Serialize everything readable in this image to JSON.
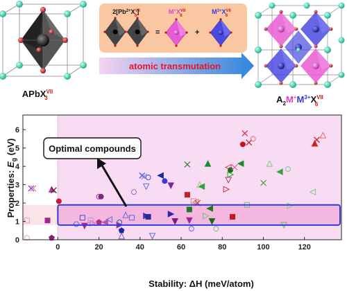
{
  "top": {
    "left_label": {
      "main": "APbX",
      "sup": "VII",
      "sub": "3"
    },
    "right_label": {
      "a": "A",
      "a_sub": "2",
      "m1": "M",
      "m1_sup": "+",
      "m3": "M",
      "m3_sup": "3+",
      "x": "X",
      "x_sup": "VII",
      "x_sub": "6"
    },
    "equation": {
      "pb_term": {
        "prefix": "2[Pb",
        "prefix_sup": "2+",
        "x": "X",
        "x_sup": "VII",
        "x_sub": "6",
        "suffix": "]"
      },
      "m1_term": {
        "m": "M",
        "m_sup": "+",
        "x": "X",
        "x_sup": "VII",
        "x_sub": "6"
      },
      "m3_term": {
        "m": "M",
        "m_sup": "3+",
        "x": "X",
        "x_sup": "VII",
        "x_sub": "6"
      },
      "equals": "=",
      "plus": "+"
    },
    "arrow_label": "atomic transmutation",
    "colors": {
      "panel": "#f9c8a2",
      "arrow_start": "#f6d3f0",
      "arrow_end": "#2f86de",
      "arrow_text": "#e8152a",
      "pb_octa": "#444444",
      "m1_octa": "#e85ad4",
      "m3_octa": "#4a4ae0",
      "a_atom": "#20c4a0",
      "x_atom": "#b81818"
    }
  },
  "chart_data": {
    "type": "scatter",
    "xlabel": "Stability: ΔH (meV/atom)",
    "ylabel_prefix": "Properties: ",
    "ylabel_var": "E",
    "ylabel_sub": "g",
    "ylabel_unit": " (eV)",
    "xlim": [
      -17,
      138
    ],
    "ylim": [
      0,
      6.8
    ],
    "xticks": [
      "0",
      "20",
      "40",
      "60",
      "80",
      "100",
      "120"
    ],
    "xtick_values": [
      0,
      20,
      40,
      60,
      80,
      100,
      120
    ],
    "yticks": [
      "0",
      "1",
      "2",
      "3",
      "4",
      "5",
      "6"
    ],
    "ytick_values": [
      0,
      1,
      2,
      3,
      4,
      5,
      6
    ],
    "annotation": "Optimal compounds",
    "regions": {
      "unstable_bg": "#ffffff",
      "stable_bg": "#f8dcf4",
      "optimal_band": [
        0.8,
        1.9
      ],
      "band_fill": "#f3b7e0",
      "band_border": "#2c3ed6"
    },
    "points": [
      {
        "x": -13,
        "y": 2.8,
        "m": "x",
        "c": "#7a52c8"
      },
      {
        "x": -12,
        "y": 2.8,
        "m": "x",
        "c": "#e27fd0"
      },
      {
        "x": -3,
        "y": 2.75,
        "m": "tri-up",
        "c": "#a8409c",
        "f": 1
      },
      {
        "x": -2,
        "y": 2.7,
        "m": "x",
        "c": "#6a1030"
      },
      {
        "x": 0.5,
        "y": 2.1,
        "m": "circle",
        "c": "#cc1c2a",
        "f": 1
      },
      {
        "x": -15,
        "y": 1.05,
        "m": "square",
        "c": "#e89ad6"
      },
      {
        "x": -5,
        "y": 1.05,
        "m": "square",
        "c": "#9c2a8a",
        "f": 1
      },
      {
        "x": -15,
        "y": 0.1,
        "m": "circle",
        "c": "#e89ad6"
      },
      {
        "x": -3,
        "y": 0.1,
        "m": "pentagon",
        "c": "#8a1c7a",
        "f": 1
      },
      {
        "x": 9,
        "y": 0.85,
        "m": "circle",
        "c": "#6a6ad0"
      },
      {
        "x": 12,
        "y": 1.2,
        "m": "square",
        "c": "#4a4ad8"
      },
      {
        "x": 13,
        "y": 0.75,
        "m": "tri-down",
        "c": "#a03090",
        "f": 1
      },
      {
        "x": 16,
        "y": 1.05,
        "m": "square",
        "c": "#d08ac8"
      },
      {
        "x": 17,
        "y": 0.9,
        "m": "tri-right",
        "c": "#c070c0"
      },
      {
        "x": 20,
        "y": 0.95,
        "m": "pentagon",
        "c": "#b03080",
        "f": 1
      },
      {
        "x": 20,
        "y": 2.35,
        "m": "circle",
        "c": "#a03a8a"
      },
      {
        "x": 21,
        "y": 2.35,
        "m": "circle",
        "c": "#7a2a7a",
        "f": 1
      },
      {
        "x": 23,
        "y": 0.95,
        "m": "tri-left",
        "c": "#c050b0",
        "f": 1
      },
      {
        "x": 25,
        "y": 1.1,
        "m": "tri-left",
        "c": "#6a6ad8"
      },
      {
        "x": 30,
        "y": 0.8,
        "m": "tri-right",
        "c": "#8a2aa0",
        "f": 1
      },
      {
        "x": 30,
        "y": 0.95,
        "m": "circle",
        "c": "#2060c0"
      },
      {
        "x": 31,
        "y": 0.5,
        "m": "pentagon",
        "c": "#1a2a9a",
        "f": 1
      },
      {
        "x": 31,
        "y": 0.2,
        "m": "tri-up",
        "c": "#7a5ad0"
      },
      {
        "x": 33,
        "y": 1.35,
        "m": "tri-up",
        "c": "#6a6ad8"
      },
      {
        "x": 36,
        "y": 1.2,
        "m": "square",
        "c": "#5a6ad8"
      },
      {
        "x": 37,
        "y": 2.6,
        "m": "circle",
        "c": "#a060c0"
      },
      {
        "x": 41,
        "y": 3.5,
        "m": "x",
        "c": "#5a5ad8"
      },
      {
        "x": 42,
        "y": 3.45,
        "m": "x",
        "c": "#8a8ae0"
      },
      {
        "x": 43,
        "y": 2.9,
        "m": "tri-down",
        "c": "#6a6ad8"
      },
      {
        "x": 43,
        "y": 1.3,
        "m": "tri-right",
        "c": "#3a3ab0",
        "f": 1
      },
      {
        "x": 44,
        "y": 3.4,
        "m": "circle",
        "c": "#4a4ad8"
      },
      {
        "x": 44,
        "y": 1.25,
        "m": "square",
        "c": "#2a2a9a",
        "f": 1
      },
      {
        "x": 46,
        "y": 0.2,
        "m": "tri-down",
        "c": "#6a6ad8"
      },
      {
        "x": 50,
        "y": 3.5,
        "m": "tri-left",
        "c": "#1a2aa0",
        "f": 1
      },
      {
        "x": 52,
        "y": 3.2,
        "m": "circle",
        "c": "#3a3ad8",
        "f": 1
      },
      {
        "x": 55,
        "y": 2.95,
        "m": "tri-down",
        "c": "#7a2a9a",
        "f": 1
      },
      {
        "x": 55,
        "y": 1.4,
        "m": "tri-right",
        "c": "#2a2aa8",
        "f": 1
      },
      {
        "x": 57,
        "y": 1.0,
        "m": "tri-down",
        "c": "#7a1a7a",
        "f": 1
      },
      {
        "x": 63,
        "y": 2.45,
        "m": "square",
        "c": "#c02020",
        "f": 1
      },
      {
        "x": 63,
        "y": 4.1,
        "m": "x",
        "c": "#2a8a2a"
      },
      {
        "x": 64,
        "y": 1.65,
        "m": "square",
        "c": "#1a7a2a",
        "f": 1
      },
      {
        "x": 64,
        "y": 1.05,
        "m": "tri-down",
        "c": "#9a2a9a",
        "f": 1
      },
      {
        "x": 65,
        "y": 0.6,
        "m": "circle",
        "c": "#6a6ad8"
      },
      {
        "x": 66,
        "y": 2.1,
        "m": "square",
        "c": "#e08080"
      },
      {
        "x": 67,
        "y": 2.05,
        "m": "tri-left",
        "c": "#e07070"
      },
      {
        "x": 68,
        "y": 2.0,
        "m": "x",
        "c": "#d04050"
      },
      {
        "x": 69,
        "y": 3.0,
        "m": "tri-up",
        "c": "#8ac880"
      },
      {
        "x": 70,
        "y": 2.9,
        "m": "tri-left",
        "c": "#30a040",
        "f": 1
      },
      {
        "x": 72,
        "y": 1.3,
        "m": "tri-right",
        "c": "#7ac070"
      },
      {
        "x": 73,
        "y": 4.15,
        "m": "tri-up",
        "c": "#1a8a2a",
        "f": 1
      },
      {
        "x": 74,
        "y": 1.7,
        "m": "tri-left",
        "c": "#1a7a1a",
        "f": 1
      },
      {
        "x": 75,
        "y": 1.0,
        "m": "tri-down",
        "c": "#1a6a1a",
        "f": 1
      },
      {
        "x": 77,
        "y": 0.6,
        "m": "circle",
        "c": "#7ac070"
      },
      {
        "x": 82,
        "y": 2.75,
        "m": "tri-right",
        "c": "#d03040"
      },
      {
        "x": 83,
        "y": 3.25,
        "m": "tri-down",
        "c": "#c04050"
      },
      {
        "x": 83,
        "y": 3.95,
        "m": "tri-left",
        "c": "#d04050"
      },
      {
        "x": 84,
        "y": 3.55,
        "m": "tri-right",
        "c": "#20a030"
      },
      {
        "x": 84,
        "y": 3.8,
        "m": "circle",
        "c": "#1a6a1a",
        "f": 1
      },
      {
        "x": 85,
        "y": 1.25,
        "m": "square",
        "c": "#c01818",
        "f": 1
      },
      {
        "x": 86,
        "y": 3.95,
        "m": "x",
        "c": "#e07080"
      },
      {
        "x": 89,
        "y": 4.15,
        "m": "tri-left",
        "c": "#1a8a2a",
        "f": 1
      },
      {
        "x": 90,
        "y": 5.2,
        "m": "circle",
        "c": "#c01820",
        "f": 1
      },
      {
        "x": 91,
        "y": 5.8,
        "m": "x",
        "c": "#e03040"
      },
      {
        "x": 92,
        "y": 1.9,
        "m": "square",
        "c": "#70b870"
      },
      {
        "x": 93,
        "y": 5.3,
        "m": "x",
        "c": "#c02030"
      },
      {
        "x": 95,
        "y": 5.5,
        "m": "circle",
        "c": "#e07070"
      },
      {
        "x": 100,
        "y": 3.1,
        "m": "x",
        "c": "#50a050"
      },
      {
        "x": 103,
        "y": 4.15,
        "m": "tri-up",
        "c": "#80c880"
      },
      {
        "x": 108,
        "y": 3.7,
        "m": "tri-left",
        "c": "#40a040",
        "f": 1
      },
      {
        "x": 110,
        "y": 0.8,
        "m": "tri-down",
        "c": "#70b870"
      },
      {
        "x": 112,
        "y": 3.85,
        "m": "circle",
        "c": "#80c880"
      },
      {
        "x": 113,
        "y": 1.85,
        "m": "tri-right",
        "c": "#80c880"
      },
      {
        "x": 124,
        "y": 2.6,
        "m": "tri-left",
        "c": "#80c880"
      },
      {
        "x": 125,
        "y": 5.25,
        "m": "tri-up",
        "c": "#d02020",
        "f": 1
      },
      {
        "x": 126,
        "y": 5.45,
        "m": "x",
        "c": "#d02020"
      },
      {
        "x": 129,
        "y": 5.7,
        "m": "tri-up",
        "c": "#e07070"
      }
    ]
  }
}
